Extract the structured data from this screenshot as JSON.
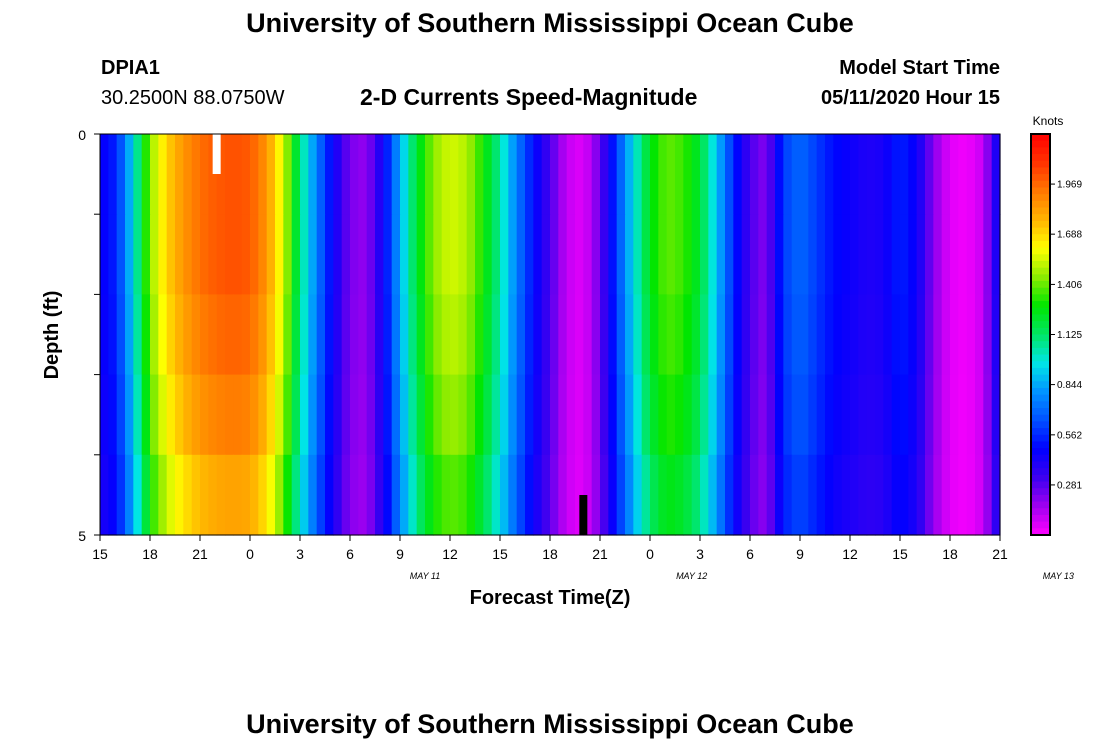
{
  "header": {
    "title": "University of Southern Mississippi Ocean Cube",
    "station_id": "DPIA1",
    "station_coords": "30.2500N 88.0750W",
    "subtitle": "2-D Currents Speed-Magnitude",
    "model_start_label": "Model Start Time",
    "model_start_value": "05/11/2020 Hour 15"
  },
  "footer": {
    "title": "University of Southern Mississippi Ocean Cube"
  },
  "colors": {
    "palette": [
      "#ff00ff",
      "#a000f0",
      "#3c00f0",
      "#0000ff",
      "#0050ff",
      "#0094ff",
      "#00e6e6",
      "#00e664",
      "#00e600",
      "#8cec00",
      "#ffff00",
      "#ffb400",
      "#ff7800",
      "#ff3200",
      "#ff0000"
    ],
    "now_marker": "#ffffff",
    "end_marker": "#000000"
  },
  "chart_data": {
    "type": "heatmap",
    "title": "2-D Currents Speed-Magnitude",
    "xlabel": "Forecast Time(Z)",
    "ylabel": "Depth (ft)",
    "colorbar_label": "Knots",
    "colorbar_ticks": [
      "1.969",
      "1.688",
      "1.406",
      "1.125",
      "0.844",
      "0.562",
      "0.281"
    ],
    "colorbar_range": [
      0,
      2.25
    ],
    "x_tick_labels": [
      "15",
      "18",
      "21",
      "0",
      "3",
      "6",
      "9",
      "12",
      "15",
      "18",
      "21",
      "0",
      "3",
      "6",
      "9",
      "12",
      "15",
      "18",
      "21"
    ],
    "date_labels": [
      {
        "label": "MAY 11",
        "hour": 19.5
      },
      {
        "label": "MAY 12",
        "hour": 35.5
      },
      {
        "label": "MAY 13",
        "hour": 57.5
      }
    ],
    "x_range_hours": [
      0,
      54
    ],
    "y_labels": [
      "0",
      "5"
    ],
    "depth_range_ft": [
      0,
      5
    ],
    "depth_levels": 5,
    "now_marker_hour": 7,
    "end_marker_hour": 29,
    "speed_profile_by_hour": [
      [
        0,
        0.45
      ],
      [
        1,
        0.55
      ],
      [
        2,
        0.95
      ],
      [
        3,
        1.45
      ],
      [
        4,
        1.7
      ],
      [
        5,
        1.85
      ],
      [
        6,
        1.95
      ],
      [
        7,
        2.0
      ],
      [
        8,
        2.02
      ],
      [
        9,
        2.0
      ],
      [
        10,
        1.85
      ],
      [
        11,
        1.55
      ],
      [
        12,
        1.1
      ],
      [
        13,
        0.75
      ],
      [
        14,
        0.45
      ],
      [
        15,
        0.22
      ],
      [
        16,
        0.18
      ],
      [
        17,
        0.45
      ],
      [
        18,
        0.85
      ],
      [
        19,
        1.2
      ],
      [
        20,
        1.45
      ],
      [
        21,
        1.55
      ],
      [
        22,
        1.5
      ],
      [
        23,
        1.3
      ],
      [
        24,
        1.05
      ],
      [
        25,
        0.75
      ],
      [
        26,
        0.5
      ],
      [
        27,
        0.3
      ],
      [
        28,
        0.1
      ],
      [
        29,
        0.05
      ],
      [
        30,
        0.25
      ],
      [
        31,
        0.6
      ],
      [
        32,
        0.95
      ],
      [
        33,
        1.25
      ],
      [
        34,
        1.4
      ],
      [
        35,
        1.35
      ],
      [
        36,
        1.2
      ],
      [
        37,
        0.9
      ],
      [
        38,
        0.55
      ],
      [
        39,
        0.3
      ],
      [
        40,
        0.2
      ],
      [
        41,
        0.6
      ],
      [
        42,
        0.7
      ],
      [
        43,
        0.6
      ],
      [
        44,
        0.5
      ],
      [
        45,
        0.45
      ],
      [
        46,
        0.4
      ],
      [
        47,
        0.42
      ],
      [
        48,
        0.55
      ],
      [
        49,
        0.45
      ],
      [
        50,
        0.2
      ],
      [
        51,
        0.05
      ],
      [
        52,
        0.02
      ],
      [
        53,
        0.1
      ],
      [
        54,
        0.5
      ]
    ],
    "depth_factors": [
      1.0,
      1.0,
      0.98,
      0.95,
      0.9
    ]
  }
}
